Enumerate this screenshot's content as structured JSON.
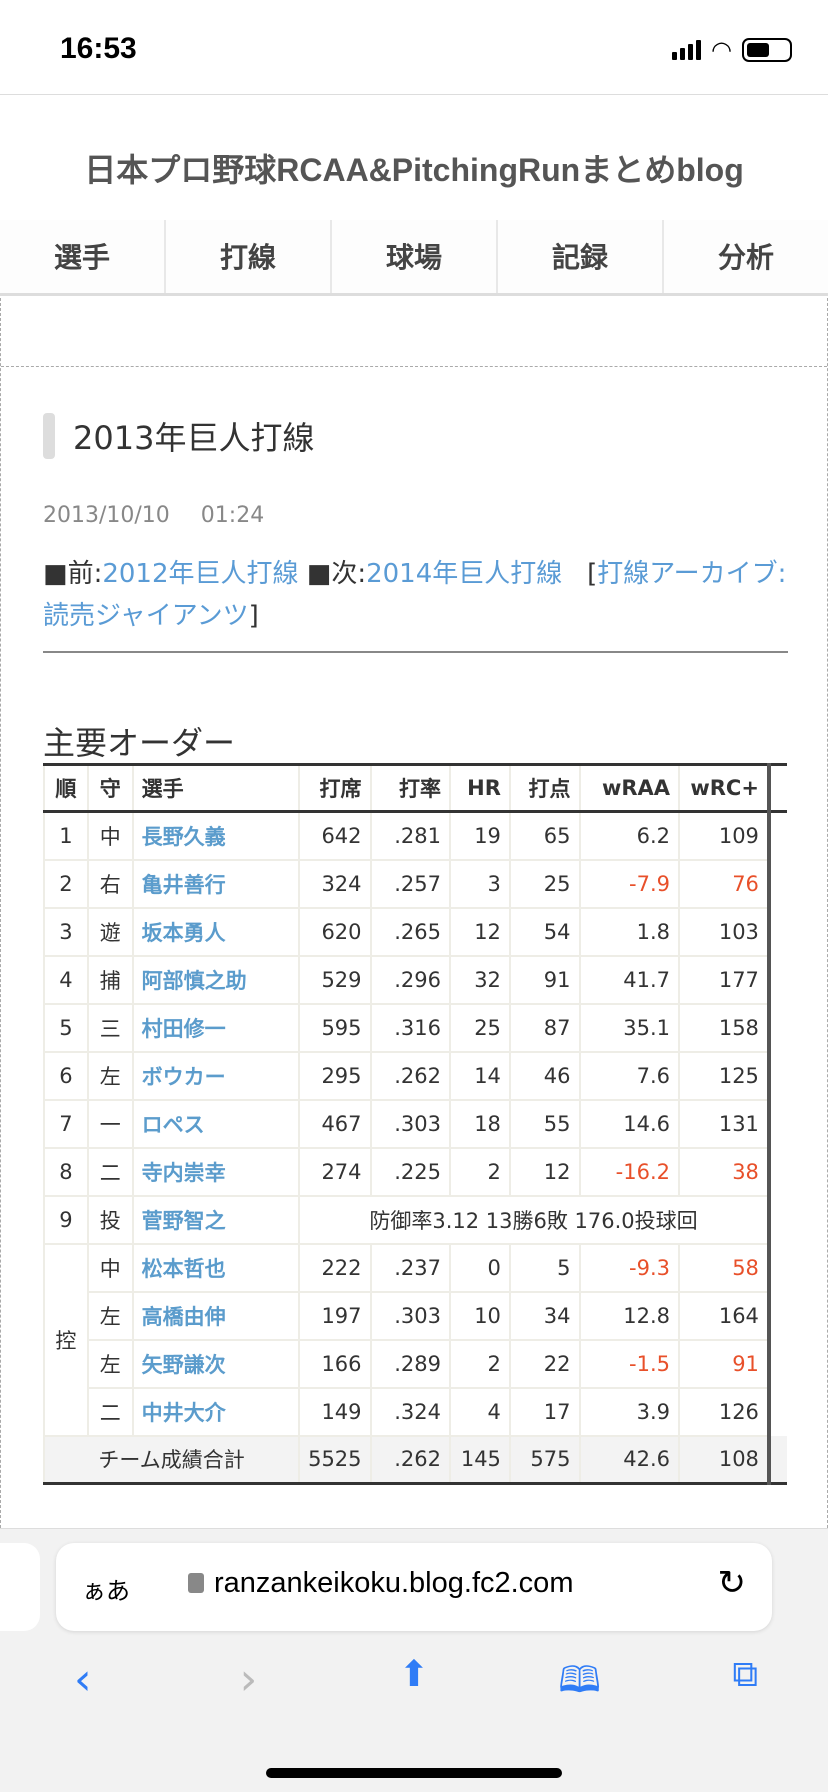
{
  "status": {
    "time": "16:53"
  },
  "blog_title": "日本プロ野球RCAA&PitchingRunまとめblog",
  "nav": [
    "選手",
    "打線",
    "球場",
    "記録",
    "分析"
  ],
  "article": {
    "title": "2013年巨人打線",
    "date": "2013/10/10 01:24",
    "prev_label": "■前:",
    "prev_link": "2012年巨人打線",
    "next_label": " ■次:",
    "next_link": "2014年巨人打線",
    "archive_open": "[",
    "archive_link": "打線アーカイブ:読売ジャイアンツ",
    "archive_close": "]"
  },
  "section_title": "主要オーダー",
  "table": {
    "headers": [
      "順",
      "守",
      "選手",
      "打席",
      "打率",
      "HR",
      "打点",
      "wRAA",
      "wRC+"
    ],
    "rows": [
      {
        "order": "1",
        "pos": "中",
        "name": "長野久義",
        "pa": "642",
        "avg": ".281",
        "hr": "19",
        "rbi": "65",
        "wraa": "6.2",
        "wrc": "109"
      },
      {
        "order": "2",
        "pos": "右",
        "name": "亀井善行",
        "pa": "324",
        "avg": ".257",
        "hr": "3",
        "rbi": "25",
        "wraa": "-7.9",
        "wrc": "76"
      },
      {
        "order": "3",
        "pos": "遊",
        "name": "坂本勇人",
        "pa": "620",
        "avg": ".265",
        "hr": "12",
        "rbi": "54",
        "wraa": "1.8",
        "wrc": "103"
      },
      {
        "order": "4",
        "pos": "捕",
        "name": "阿部慎之助",
        "pa": "529",
        "avg": ".296",
        "hr": "32",
        "rbi": "91",
        "wraa": "41.7",
        "wrc": "177"
      },
      {
        "order": "5",
        "pos": "三",
        "name": "村田修一",
        "pa": "595",
        "avg": ".316",
        "hr": "25",
        "rbi": "87",
        "wraa": "35.1",
        "wrc": "158"
      },
      {
        "order": "6",
        "pos": "左",
        "name": "ボウカー",
        "pa": "295",
        "avg": ".262",
        "hr": "14",
        "rbi": "46",
        "wraa": "7.6",
        "wrc": "125"
      },
      {
        "order": "7",
        "pos": "一",
        "name": "ロペス",
        "pa": "467",
        "avg": ".303",
        "hr": "18",
        "rbi": "55",
        "wraa": "14.6",
        "wrc": "131"
      },
      {
        "order": "8",
        "pos": "二",
        "name": "寺内崇幸",
        "pa": "274",
        "avg": ".225",
        "hr": "2",
        "rbi": "12",
        "wraa": "-16.2",
        "wrc": "38"
      }
    ],
    "pitcher": {
      "order": "9",
      "pos": "投",
      "name": "菅野智之",
      "summary": "防御率3.12 13勝6敗 176.0投球回"
    },
    "bench_label": "控",
    "bench": [
      {
        "pos": "中",
        "name": "松本哲也",
        "pa": "222",
        "avg": ".237",
        "hr": "0",
        "rbi": "5",
        "wraa": "-9.3",
        "wrc": "58"
      },
      {
        "pos": "左",
        "name": "高橋由伸",
        "pa": "197",
        "avg": ".303",
        "hr": "10",
        "rbi": "34",
        "wraa": "12.8",
        "wrc": "164"
      },
      {
        "pos": "左",
        "name": "矢野謙次",
        "pa": "166",
        "avg": ".289",
        "hr": "2",
        "rbi": "22",
        "wraa": "-1.5",
        "wrc": "91"
      },
      {
        "pos": "二",
        "name": "中井大介",
        "pa": "149",
        "avg": ".324",
        "hr": "4",
        "rbi": "17",
        "wraa": "3.9",
        "wrc": "126"
      }
    ],
    "total": {
      "label": "チーム成績合計",
      "pa": "5525",
      "avg": ".262",
      "hr": "145",
      "rbi": "575",
      "wraa": "42.6",
      "wrc": "108"
    }
  },
  "browser": {
    "aa": "ぁあ",
    "url": "ranzankeikoku.blog.fc2.com"
  },
  "colors": {
    "link": "#5a9bd5",
    "negative": "#e8502a",
    "ios_blue": "#2f7cf6"
  }
}
